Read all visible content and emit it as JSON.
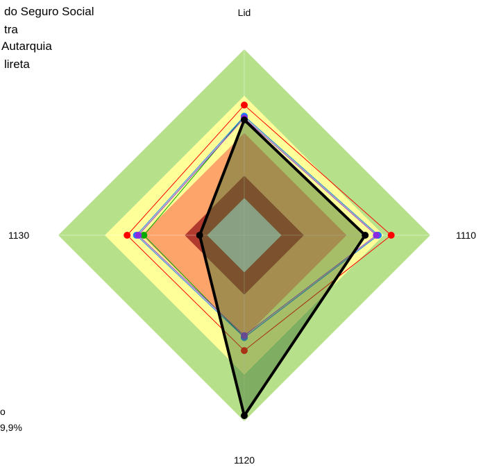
{
  "chart_data": {
    "type": "radar",
    "axes": [
      "Lid",
      "1110",
      "1120",
      "1130"
    ],
    "rlim": [
      0,
      100
    ],
    "bands": [
      {
        "to": 100,
        "color": "#b7e08a"
      },
      {
        "to": 75,
        "color": "#ffff99"
      },
      {
        "to": 55,
        "color": "#fca46a"
      },
      {
        "to": 32,
        "color": "#b03a2e"
      },
      {
        "to": 20,
        "color": "#c8c8c8"
      }
    ],
    "series": [
      {
        "color": "#ff0000",
        "style": "thin",
        "values": [
          70,
          79,
          62,
          63
        ]
      },
      {
        "color": "#00aa00",
        "style": "thin",
        "values": [
          64,
          72,
          55,
          54
        ]
      },
      {
        "color": "#1f78ff",
        "style": "thin",
        "values": [
          64,
          72,
          55,
          58
        ]
      },
      {
        "color": "#8a2be2",
        "style": "thin",
        "values": [
          63,
          71,
          54,
          57
        ]
      },
      {
        "color": "#000000",
        "style": "thick",
        "values": [
          62,
          65,
          97,
          24
        ]
      }
    ],
    "legend": [
      "do Seguro Social",
      "tra",
      "Autarquia",
      "lireta"
    ],
    "notes": [
      "o",
      "9,9%"
    ]
  }
}
